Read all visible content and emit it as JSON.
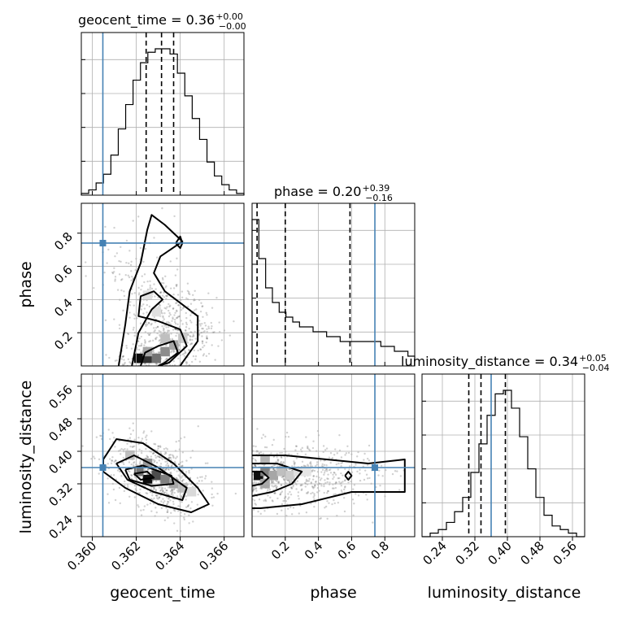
{
  "chart_data": {
    "type": "corner",
    "parameters": [
      "geocent_time",
      "phase",
      "luminosity_distance"
    ],
    "titles": [
      {
        "param": "geocent_time",
        "text": "geocent_time = 0.36",
        "sup": "+0.00",
        "sub": "−0.00"
      },
      {
        "param": "phase",
        "text": "phase = 0.20",
        "sup": "+0.39",
        "sub": "−0.16"
      },
      {
        "param": "luminosity_distance",
        "text": "luminosity_distance = 0.34",
        "sup": "+0.05",
        "sub": "−0.04"
      }
    ],
    "axis_labels": {
      "x": [
        "geocent_time",
        "phase",
        "luminosity_distance"
      ],
      "y": [
        "phase",
        "luminosity_distance"
      ]
    },
    "ticks": {
      "geocent_time": [
        "0.360",
        "0.362",
        "0.364",
        "0.366"
      ],
      "phase": [
        "0.2",
        "0.4",
        "0.6",
        "0.8"
      ],
      "luminosity_distance": [
        "0.24",
        "0.32",
        "0.40",
        "0.48",
        "0.56"
      ]
    },
    "ranges": {
      "geocent_time": [
        0.3595,
        0.3669
      ],
      "phase": [
        0.0,
        0.98
      ],
      "luminosity_distance": [
        0.19,
        0.59
      ]
    },
    "truth": {
      "geocent_time": 0.36048,
      "phase": 0.74,
      "luminosity_distance": 0.36
    },
    "quantiles": {
      "geocent_time": [
        0.36245,
        0.36315,
        0.3637
      ],
      "phase": [
        0.03,
        0.2,
        0.59
      ],
      "luminosity_distance": [
        0.305,
        0.335,
        0.395
      ]
    },
    "histograms": {
      "geocent_time": {
        "x0": 0.3595,
        "x1": 0.3669,
        "counts": [
          1,
          3,
          7,
          12,
          23,
          38,
          52,
          66,
          76,
          82,
          84,
          84,
          81,
          70,
          57,
          44,
          32,
          19,
          11,
          6,
          3,
          1
        ]
      },
      "phase": {
        "x0": 0.0,
        "x1": 0.98,
        "counts": [
          30,
          22,
          16,
          13,
          11,
          10,
          9,
          8,
          8,
          7,
          7,
          6,
          6,
          5,
          5,
          5,
          5,
          5,
          5,
          4,
          4,
          3,
          3,
          2
        ]
      },
      "luminosity_distance": {
        "x0": 0.19,
        "x1": 0.59,
        "counts": [
          0,
          1,
          2,
          4,
          7,
          11,
          18,
          26,
          34,
          40,
          41,
          36,
          28,
          19,
          11,
          6,
          3,
          2,
          1,
          0
        ]
      }
    },
    "grid": true
  }
}
